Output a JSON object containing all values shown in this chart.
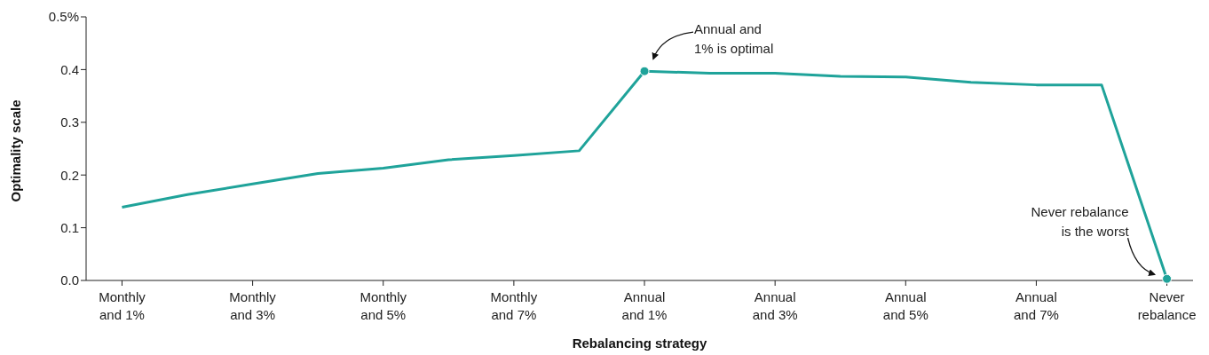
{
  "chart_data": {
    "type": "line",
    "xlabel": "Rebalancing strategy",
    "ylabel": "Optimality scale",
    "categories": [
      "Monthly and 1%",
      null,
      "Monthly and 3%",
      null,
      "Monthly and 5%",
      null,
      "Monthly and 7%",
      null,
      "Annual and 1%",
      null,
      "Annual and 3%",
      null,
      "Annual and 5%",
      null,
      "Annual and 7%",
      null,
      "Never rebalance"
    ],
    "series": [
      {
        "color": "#1fa39a",
        "values": [
          0.139,
          0.163,
          0.183,
          0.203,
          0.213,
          0.229,
          0.237,
          0.246,
          0.397,
          0.393,
          0.393,
          0.387,
          0.386,
          0.376,
          0.371,
          0.371,
          0.003
        ]
      }
    ],
    "ylim": [
      0,
      0.5
    ],
    "yticks": [
      {
        "value": 0,
        "label": "0.0"
      },
      0.1,
      0.2,
      0.3,
      0.4,
      {
        "value": 0.5,
        "label": "0.5%"
      }
    ],
    "grid": false,
    "legend": false,
    "marker": "none",
    "line_style": "solid",
    "annotations": [
      "Annual and 1% is optimal",
      "Never rebalance is the worst"
    ]
  }
}
